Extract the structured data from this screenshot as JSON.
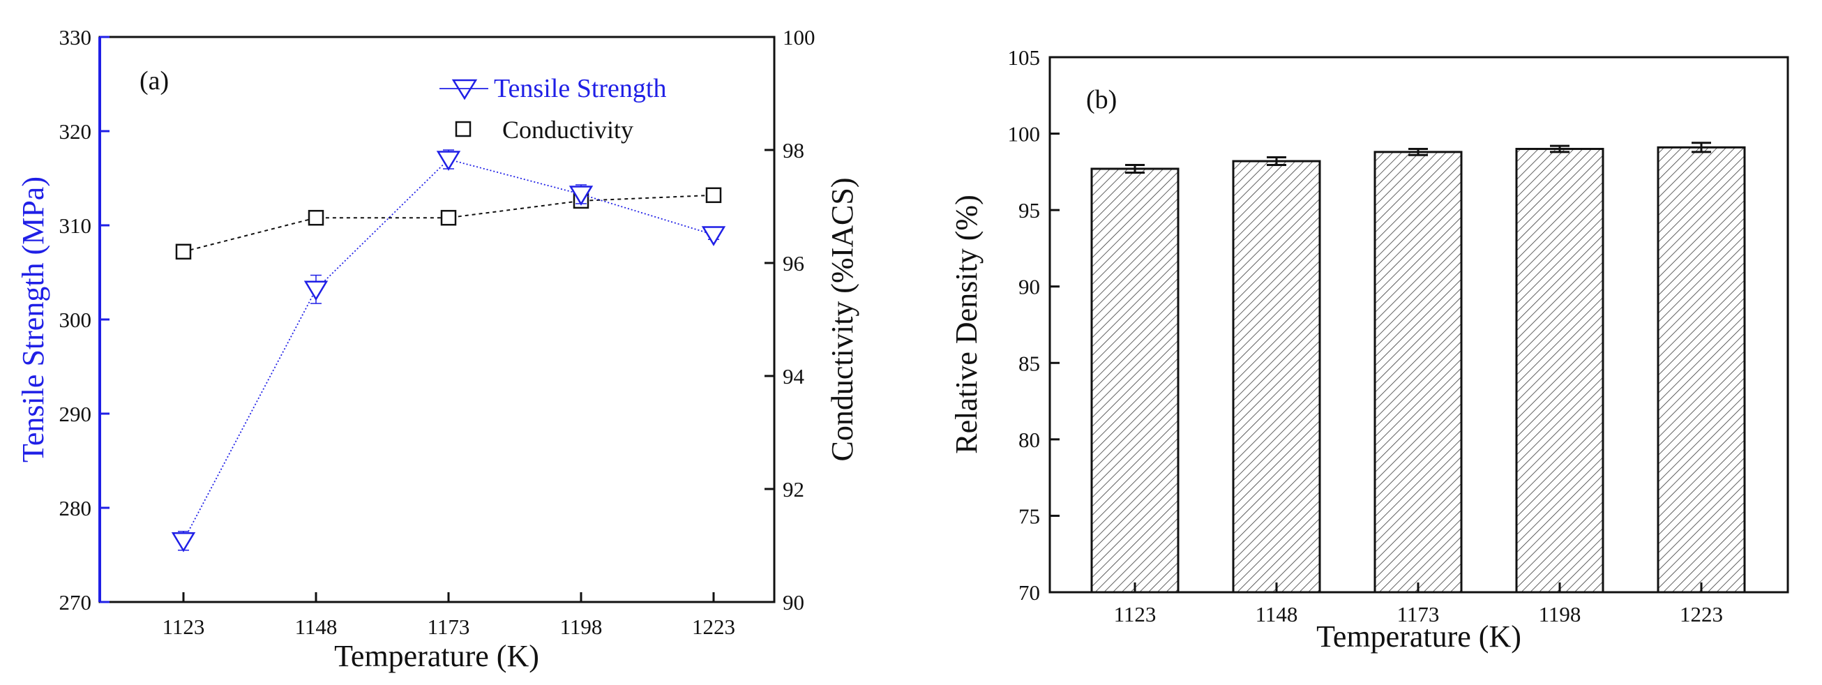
{
  "chart_data": [
    {
      "panel_label": "(a)",
      "type": "line",
      "xlabel": "Temperature (K)",
      "categories": [
        "1123",
        "1148",
        "1173",
        "1198",
        "1223"
      ],
      "ylabel_left": "Tensile Strength (MPa)",
      "ylabel_right": "Conductivity (%IACS)",
      "ylim_left": [
        270,
        330
      ],
      "yticks_left": [
        "270",
        "280",
        "290",
        "300",
        "310",
        "320",
        "330"
      ],
      "ylim_right": [
        90,
        100
      ],
      "yticks_right": [
        "90",
        "92",
        "94",
        "96",
        "98",
        "100"
      ],
      "series": [
        {
          "name": "Tensile Strength",
          "axis": "left",
          "marker": "triangle-down",
          "color": "#1f1fe6",
          "values": [
            276.5,
            303.2,
            317.0,
            313.3,
            309.0
          ],
          "errors": [
            1.0,
            1.5,
            1.0,
            1.0,
            0.5
          ]
        },
        {
          "name": "Conductivity",
          "axis": "right",
          "marker": "square",
          "color": "#111111",
          "values": [
            96.2,
            96.8,
            96.8,
            97.1,
            97.2
          ]
        }
      ]
    },
    {
      "panel_label": "(b)",
      "type": "bar",
      "xlabel": "Temperature (K)",
      "ylabel": "Relative Density (%)",
      "categories": [
        "1123",
        "1148",
        "1173",
        "1198",
        "1223"
      ],
      "values": [
        97.7,
        98.2,
        98.8,
        99.0,
        99.1
      ],
      "errors": [
        0.25,
        0.25,
        0.2,
        0.2,
        0.3
      ],
      "ylim": [
        70,
        105
      ],
      "yticks": [
        "70",
        "75",
        "80",
        "85",
        "90",
        "95",
        "100",
        "105"
      ],
      "color": "#111111"
    }
  ]
}
